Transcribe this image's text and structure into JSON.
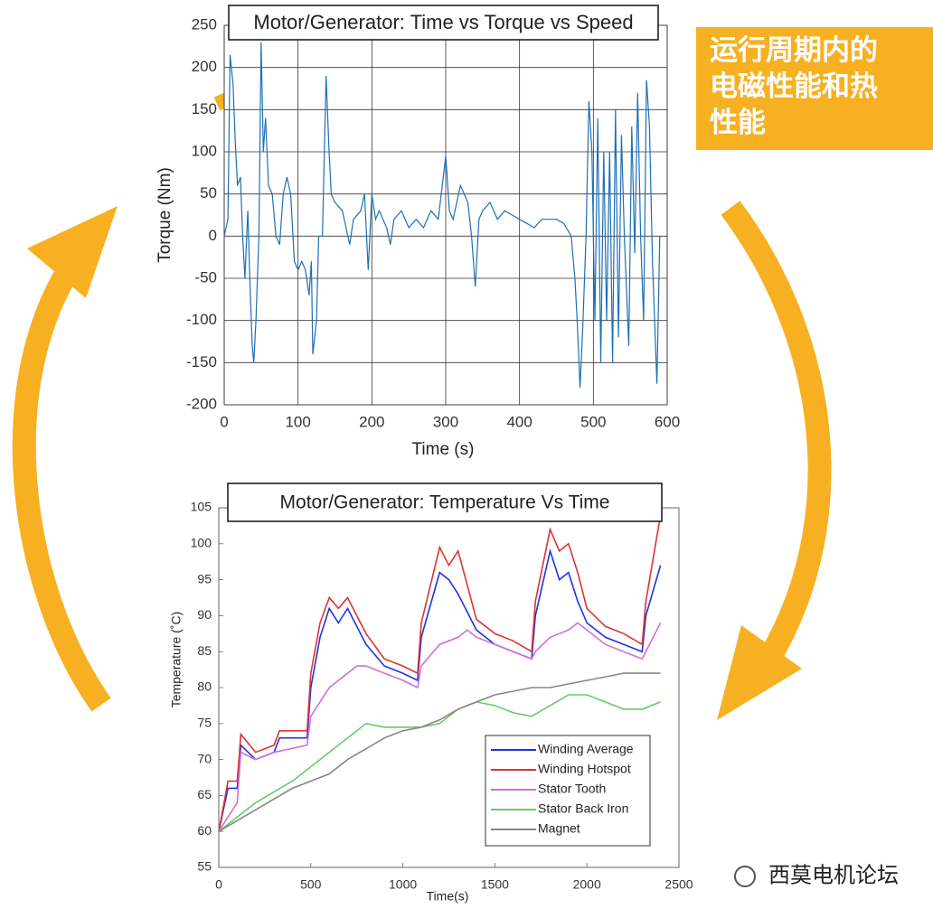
{
  "callout": "运行周期内的电磁性能和热性能",
  "watermark": "西莫电机论坛",
  "chart_data": [
    {
      "type": "line",
      "title": "Motor/Generator: Time vs Torque vs Speed",
      "x_label": "Time (s)",
      "y_label": "Torque (Nm)",
      "xlim": [
        0,
        600
      ],
      "xticks": [
        0,
        100,
        200,
        300,
        400,
        500,
        600
      ],
      "ylim": [
        -200,
        250
      ],
      "yticks": [
        -200,
        -150,
        -100,
        -50,
        0,
        50,
        100,
        150,
        200,
        250
      ],
      "grid": true,
      "series": [
        {
          "name": "Torque",
          "color": "#1f6fb5",
          "x": [
            0,
            5,
            8,
            12,
            15,
            18,
            22,
            25,
            28,
            32,
            35,
            38,
            40,
            43,
            47,
            50,
            53,
            56,
            60,
            65,
            70,
            75,
            80,
            85,
            90,
            95,
            100,
            105,
            110,
            115,
            118,
            120,
            125,
            128,
            133,
            138,
            142,
            145,
            150,
            160,
            170,
            175,
            185,
            190,
            195,
            200,
            205,
            210,
            220,
            225,
            230,
            240,
            250,
            260,
            270,
            280,
            290,
            300,
            305,
            310,
            320,
            330,
            335,
            340,
            345,
            350,
            360,
            370,
            380,
            390,
            400,
            410,
            420,
            430,
            440,
            450,
            460,
            470,
            475,
            478,
            482,
            486,
            490,
            494,
            498,
            502,
            506,
            510,
            514,
            518,
            522,
            526,
            530,
            534,
            538,
            542,
            548,
            552,
            556,
            560,
            564,
            568,
            572,
            576,
            580,
            586,
            590
          ],
          "values": [
            0,
            20,
            215,
            180,
            110,
            60,
            70,
            0,
            -50,
            30,
            -60,
            -130,
            -150,
            -100,
            0,
            230,
            100,
            140,
            60,
            50,
            0,
            -10,
            50,
            70,
            50,
            -30,
            -40,
            -30,
            -40,
            -70,
            -30,
            -140,
            -100,
            0,
            0,
            190,
            100,
            50,
            40,
            30,
            -10,
            20,
            30,
            50,
            -40,
            50,
            20,
            30,
            10,
            -10,
            20,
            30,
            10,
            20,
            10,
            30,
            20,
            95,
            30,
            20,
            60,
            40,
            0,
            -60,
            20,
            30,
            40,
            20,
            30,
            25,
            20,
            15,
            10,
            20,
            20,
            20,
            15,
            0,
            -50,
            -100,
            -180,
            -100,
            0,
            160,
            100,
            -100,
            140,
            -150,
            100,
            -100,
            100,
            -150,
            150,
            -120,
            120,
            0,
            -130,
            130,
            -20,
            170,
            0,
            -100,
            185,
            130,
            -30,
            -175,
            0
          ]
        }
      ]
    },
    {
      "type": "line",
      "title": "Motor/Generator: Temperature Vs Time",
      "x_label": "Time(s)",
      "y_label": "Temperature (˚C)",
      "xlim": [
        0,
        2500
      ],
      "xticks": [
        0,
        500,
        1000,
        1500,
        2000,
        2500
      ],
      "ylim": [
        55,
        105
      ],
      "yticks": [
        55,
        60,
        65,
        70,
        75,
        80,
        85,
        90,
        95,
        100,
        105
      ],
      "grid": false,
      "legend": "lower right",
      "series": [
        {
          "name": "Winding Average",
          "color": "#2233dd",
          "x": [
            0,
            50,
            100,
            120,
            200,
            300,
            330,
            480,
            500,
            550,
            600,
            650,
            700,
            800,
            900,
            1000,
            1080,
            1100,
            1200,
            1250,
            1300,
            1400,
            1500,
            1600,
            1700,
            1720,
            1800,
            1850,
            1900,
            1950,
            2000,
            2100,
            2200,
            2300,
            2320,
            2400
          ],
          "values": [
            60,
            66,
            66,
            72,
            70,
            71,
            73,
            73,
            80,
            87,
            91,
            89,
            91,
            86,
            83,
            82,
            81,
            87,
            96,
            95,
            93,
            88,
            86,
            85,
            84,
            90,
            99,
            95,
            96,
            92,
            89,
            87,
            86,
            85,
            90,
            97
          ]
        },
        {
          "name": "Winding Hotspot",
          "color": "#dd3333",
          "x": [
            0,
            50,
            100,
            120,
            200,
            300,
            330,
            480,
            500,
            550,
            600,
            650,
            700,
            800,
            900,
            1000,
            1080,
            1100,
            1200,
            1250,
            1300,
            1400,
            1500,
            1600,
            1700,
            1720,
            1800,
            1850,
            1900,
            1950,
            2000,
            2100,
            2200,
            2300,
            2320,
            2400
          ],
          "values": [
            60,
            67,
            67,
            73.5,
            71,
            72,
            74,
            74,
            82,
            89,
            92.5,
            91,
            92.5,
            87.5,
            84,
            83,
            82,
            89,
            99.5,
            97,
            99,
            89.5,
            87.5,
            86.5,
            85,
            92,
            102,
            99,
            100,
            96,
            91,
            88.5,
            87.5,
            86,
            92,
            104
          ]
        },
        {
          "name": "Stator Tooth",
          "color": "#d070d8",
          "x": [
            0,
            100,
            120,
            200,
            300,
            480,
            500,
            600,
            700,
            750,
            800,
            900,
            1000,
            1080,
            1100,
            1200,
            1300,
            1350,
            1400,
            1500,
            1600,
            1700,
            1720,
            1800,
            1900,
            1950,
            2000,
            2100,
            2200,
            2300,
            2400
          ],
          "values": [
            60,
            64,
            71,
            70,
            71,
            72,
            76,
            80,
            82,
            83,
            83,
            82,
            81,
            80,
            83,
            86,
            87,
            88,
            87,
            86,
            85,
            84,
            85,
            87,
            88,
            89,
            88,
            86,
            85,
            84,
            89
          ]
        },
        {
          "name": "Stator Back Iron",
          "color": "#66cc66",
          "x": [
            0,
            200,
            400,
            500,
            600,
            700,
            800,
            900,
            1000,
            1100,
            1200,
            1300,
            1400,
            1500,
            1600,
            1700,
            1800,
            1900,
            2000,
            2100,
            2200,
            2300,
            2400
          ],
          "values": [
            60,
            64,
            67,
            69,
            71,
            73,
            75,
            74.5,
            74.5,
            74.5,
            75,
            77,
            78,
            77.5,
            76.5,
            76,
            77.5,
            79,
            79,
            78,
            77,
            77,
            78
          ]
        },
        {
          "name": "Magnet",
          "color": "#888888",
          "x": [
            0,
            200,
            400,
            500,
            600,
            700,
            800,
            900,
            1000,
            1100,
            1200,
            1300,
            1400,
            1500,
            1600,
            1700,
            1800,
            1900,
            2000,
            2100,
            2200,
            2300,
            2400
          ],
          "values": [
            60,
            63,
            66,
            67,
            68,
            70,
            71.5,
            73,
            74,
            74.5,
            75.5,
            77,
            78,
            79,
            79.5,
            80,
            80,
            80.5,
            81,
            81.5,
            82,
            82,
            82
          ]
        }
      ]
    }
  ]
}
